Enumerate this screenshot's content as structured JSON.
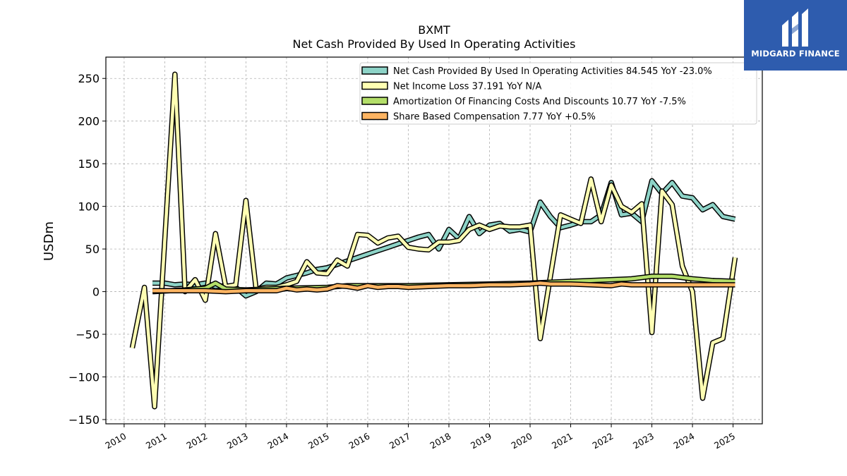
{
  "brand": {
    "name": "MIDGARD FINANCE",
    "logo_icon": "midgard-m-icon",
    "color": "#2e5cae"
  },
  "chart_data": {
    "type": "line",
    "title": "BXMT",
    "subtitle": "Net Cash Provided By Used In Operating Activities",
    "ylabel": "USDm",
    "xlabel": "",
    "xlim": [
      2009.55,
      2025.72
    ],
    "ylim": [
      -155,
      275
    ],
    "yticks": [
      -150,
      -100,
      -50,
      0,
      50,
      100,
      150,
      200,
      250
    ],
    "ytick_labels": [
      "−150",
      "−100",
      "−50",
      "0",
      "50",
      "100",
      "150",
      "200",
      "250"
    ],
    "xticks": [
      2010,
      2011,
      2012,
      2013,
      2014,
      2015,
      2016,
      2017,
      2018,
      2019,
      2020,
      2021,
      2022,
      2023,
      2024,
      2025
    ],
    "xtick_labels": [
      "2010",
      "2011",
      "2012",
      "2013",
      "2014",
      "2015",
      "2016",
      "2017",
      "2018",
      "2019",
      "2020",
      "2021",
      "2022",
      "2023",
      "2024",
      "2025"
    ],
    "grid": true,
    "legend_position": "top-right",
    "series": [
      {
        "name": "Net Cash Provided By Used In Operating Activities",
        "legend_label": "Net Cash Provided By Used In Operating Activities  84.545 YoY -23.0%",
        "color": "#8dd3c7",
        "points": [
          [
            2010.7,
            10
          ],
          [
            2011.0,
            10
          ],
          [
            2011.25,
            8
          ],
          [
            2011.5,
            9
          ],
          [
            2011.75,
            8
          ],
          [
            2012.0,
            10
          ],
          [
            2012.25,
            6
          ],
          [
            2012.5,
            7
          ],
          [
            2012.75,
            5
          ],
          [
            2013.0,
            -5
          ],
          [
            2013.25,
            0
          ],
          [
            2013.5,
            10
          ],
          [
            2013.75,
            9
          ],
          [
            2014.0,
            16
          ],
          [
            2014.25,
            19
          ],
          [
            2014.5,
            22
          ],
          [
            2014.75,
            26
          ],
          [
            2015.0,
            28
          ],
          [
            2015.25,
            32
          ],
          [
            2015.5,
            36
          ],
          [
            2015.75,
            40
          ],
          [
            2016.0,
            44
          ],
          [
            2016.25,
            48
          ],
          [
            2016.5,
            52
          ],
          [
            2016.75,
            56
          ],
          [
            2017.0,
            60
          ],
          [
            2017.25,
            64
          ],
          [
            2017.5,
            67
          ],
          [
            2017.75,
            50
          ],
          [
            2018.0,
            73
          ],
          [
            2018.25,
            62
          ],
          [
            2018.5,
            88
          ],
          [
            2018.75,
            68
          ],
          [
            2019.0,
            78
          ],
          [
            2019.25,
            80
          ],
          [
            2019.5,
            71
          ],
          [
            2019.75,
            73
          ],
          [
            2020.0,
            70
          ],
          [
            2020.25,
            105
          ],
          [
            2020.5,
            88
          ],
          [
            2020.75,
            75
          ],
          [
            2021.0,
            78
          ],
          [
            2021.25,
            82
          ],
          [
            2021.5,
            82
          ],
          [
            2021.75,
            90
          ],
          [
            2022.0,
            128
          ],
          [
            2022.25,
            90
          ],
          [
            2022.5,
            92
          ],
          [
            2022.75,
            82
          ],
          [
            2023.0,
            130
          ],
          [
            2023.25,
            115
          ],
          [
            2023.5,
            128
          ],
          [
            2023.75,
            112
          ],
          [
            2024.0,
            110
          ],
          [
            2024.25,
            96
          ],
          [
            2024.5,
            102
          ],
          [
            2024.75,
            88
          ],
          [
            2025.05,
            85
          ]
        ]
      },
      {
        "name": "Net Income Loss",
        "legend_label": "Net Income Loss  37.191 YoY N/A",
        "color": "#ffffb3",
        "points": [
          [
            2010.2,
            -66
          ],
          [
            2010.5,
            5
          ],
          [
            2010.75,
            -135
          ],
          [
            2011.25,
            255
          ],
          [
            2011.5,
            0
          ],
          [
            2011.75,
            14
          ],
          [
            2012.0,
            -10
          ],
          [
            2012.25,
            68
          ],
          [
            2012.5,
            6
          ],
          [
            2012.75,
            8
          ],
          [
            2013.0,
            107
          ],
          [
            2013.25,
            3
          ],
          [
            2013.5,
            5
          ],
          [
            2013.75,
            5
          ],
          [
            2014.0,
            8
          ],
          [
            2014.25,
            12
          ],
          [
            2014.5,
            35
          ],
          [
            2014.75,
            22
          ],
          [
            2015.0,
            21
          ],
          [
            2015.25,
            37
          ],
          [
            2015.5,
            30
          ],
          [
            2015.75,
            67
          ],
          [
            2016.0,
            66
          ],
          [
            2016.25,
            57
          ],
          [
            2016.5,
            63
          ],
          [
            2016.75,
            65
          ],
          [
            2017.0,
            52
          ],
          [
            2017.25,
            50
          ],
          [
            2017.5,
            49
          ],
          [
            2017.75,
            58
          ],
          [
            2018.0,
            58
          ],
          [
            2018.25,
            60
          ],
          [
            2018.5,
            73
          ],
          [
            2018.75,
            78
          ],
          [
            2019.0,
            73
          ],
          [
            2019.25,
            77
          ],
          [
            2019.5,
            76
          ],
          [
            2019.75,
            76
          ],
          [
            2020.0,
            78
          ],
          [
            2020.25,
            -55
          ],
          [
            2020.5,
            18
          ],
          [
            2020.75,
            90
          ],
          [
            2021.0,
            85
          ],
          [
            2021.25,
            80
          ],
          [
            2021.5,
            132
          ],
          [
            2021.75,
            82
          ],
          [
            2022.0,
            125
          ],
          [
            2022.25,
            100
          ],
          [
            2022.5,
            93
          ],
          [
            2022.75,
            103
          ],
          [
            2023.0,
            -48
          ],
          [
            2023.25,
            118
          ],
          [
            2023.5,
            102
          ],
          [
            2023.75,
            30
          ],
          [
            2024.0,
            0
          ],
          [
            2024.25,
            -125
          ],
          [
            2024.5,
            -60
          ],
          [
            2024.75,
            -55
          ],
          [
            2025.05,
            40
          ]
        ]
      },
      {
        "name": "Amortization Of Financing Costs And Discounts",
        "legend_label": "Amortization Of Financing Costs And Discounts  10.77 YoY -7.5%",
        "color": "#b3de69",
        "points": [
          [
            2010.7,
            0
          ],
          [
            2011.5,
            2
          ],
          [
            2012.0,
            4
          ],
          [
            2012.25,
            10
          ],
          [
            2012.5,
            3
          ],
          [
            2013.0,
            2
          ],
          [
            2013.5,
            3
          ],
          [
            2014.0,
            4
          ],
          [
            2015.0,
            5
          ],
          [
            2015.5,
            7
          ],
          [
            2016.0,
            7
          ],
          [
            2017.0,
            7
          ],
          [
            2018.0,
            8
          ],
          [
            2019.0,
            9
          ],
          [
            2020.0,
            10
          ],
          [
            2020.5,
            11
          ],
          [
            2021.0,
            12
          ],
          [
            2021.5,
            13
          ],
          [
            2022.0,
            14
          ],
          [
            2022.5,
            15
          ],
          [
            2023.0,
            18
          ],
          [
            2023.5,
            18
          ],
          [
            2024.0,
            15
          ],
          [
            2024.5,
            13
          ],
          [
            2025.05,
            12
          ]
        ]
      },
      {
        "name": "Share Based Compensation",
        "legend_label": "Share Based Compensation  7.77 YoY +0.5%",
        "color": "#fdb462",
        "points": [
          [
            2010.7,
            1
          ],
          [
            2011.5,
            1
          ],
          [
            2012.0,
            1
          ],
          [
            2012.5,
            0
          ],
          [
            2013.0,
            1
          ],
          [
            2013.5,
            1
          ],
          [
            2013.75,
            1
          ],
          [
            2014.0,
            4
          ],
          [
            2014.25,
            2
          ],
          [
            2014.5,
            3
          ],
          [
            2014.75,
            2
          ],
          [
            2015.0,
            3
          ],
          [
            2015.25,
            7
          ],
          [
            2015.5,
            6
          ],
          [
            2015.75,
            4
          ],
          [
            2016.0,
            7
          ],
          [
            2016.25,
            5
          ],
          [
            2016.5,
            6
          ],
          [
            2016.75,
            6
          ],
          [
            2017.0,
            5
          ],
          [
            2017.5,
            6
          ],
          [
            2018.0,
            7
          ],
          [
            2018.5,
            7
          ],
          [
            2019.0,
            8
          ],
          [
            2019.5,
            8
          ],
          [
            2020.0,
            9
          ],
          [
            2020.25,
            10
          ],
          [
            2020.5,
            9
          ],
          [
            2021.0,
            9
          ],
          [
            2021.5,
            8
          ],
          [
            2022.0,
            7
          ],
          [
            2022.25,
            9
          ],
          [
            2022.5,
            8
          ],
          [
            2023.0,
            8
          ],
          [
            2023.5,
            8
          ],
          [
            2024.0,
            8
          ],
          [
            2024.5,
            8
          ],
          [
            2025.05,
            8
          ]
        ]
      }
    ]
  }
}
